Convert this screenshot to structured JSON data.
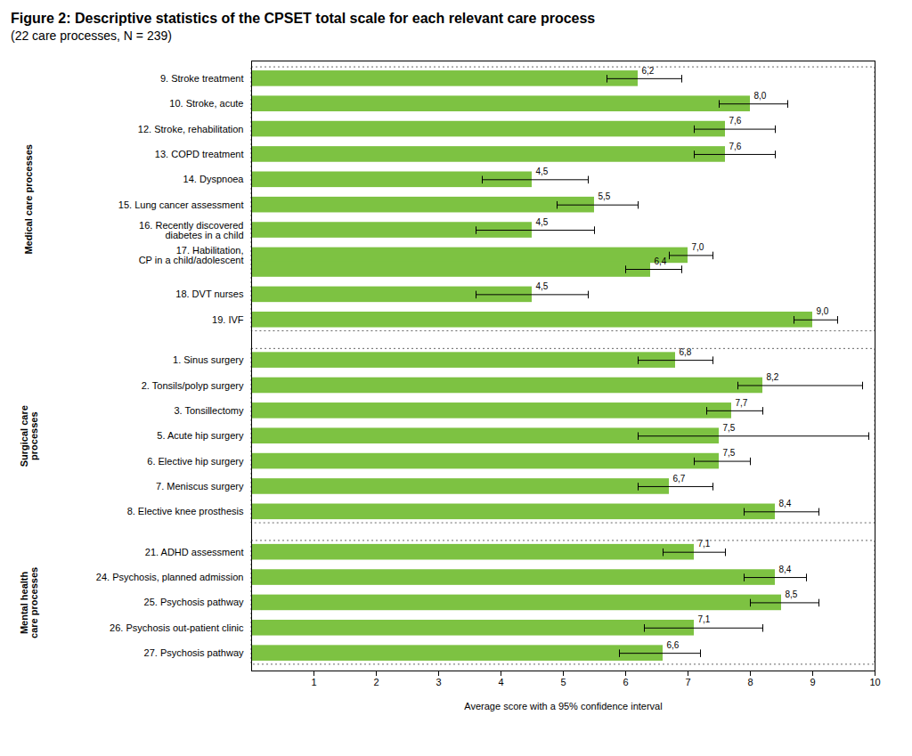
{
  "chart_data": {
    "type": "bar",
    "orientation": "horizontal",
    "title": "Figure 2: Descriptive statistics of the CPSET total scale for each relevant care process",
    "subtitle": "(22 care processes, N = 239)",
    "xlabel": "Average score with a 95% confidence interval",
    "categories": [
      "9. Stroke treatment",
      "10. Stroke, acute",
      "12. Stroke, rehabilitation",
      "13. COPD treatment",
      "14. Dyspnoea",
      "15. Lung cancer assessment",
      "16. Recently discovered\ndiabetes in a child",
      "17. Habilitation,\nCP in a child/adolescent",
      null,
      "18. DVT nurses",
      "19. IVF",
      "1. Sinus surgery",
      "2. Tonsils/polyp surgery",
      "3. Tonsillectomy",
      "5. Acute hip surgery",
      "6. Elective hip surgery",
      "7. Meniscus surgery",
      "8. Elective knee prosthesis",
      "21. ADHD assessment",
      "24. Psychosis, planned admission",
      "25. Psychosis pathway",
      "26. Psychosis out-patient clinic",
      "27. Psychosis pathway"
    ],
    "values": [
      6.2,
      8.0,
      7.6,
      7.6,
      4.5,
      5.5,
      4.5,
      7.0,
      6.4,
      4.5,
      9.0,
      6.8,
      8.2,
      7.7,
      7.5,
      7.5,
      6.7,
      8.4,
      7.1,
      8.4,
      8.5,
      7.1,
      6.6
    ],
    "value_labels": [
      "6,2",
      "8,0",
      "7,6",
      "7,6",
      "4,5",
      "5,5",
      "4,5",
      "7,0",
      "6,4",
      "4,5",
      "9,0",
      "6,8",
      "8,2",
      "7,7",
      "7,5",
      "7,5",
      "6,7",
      "8,4",
      "7,1",
      "8,4",
      "8,5",
      "7,1",
      "6,6"
    ],
    "ci_low": [
      5.7,
      7.5,
      7.1,
      7.1,
      3.7,
      4.9,
      3.6,
      6.7,
      6.0,
      3.6,
      8.7,
      6.2,
      7.8,
      7.3,
      6.2,
      7.1,
      6.2,
      7.9,
      6.6,
      7.9,
      8.0,
      6.3,
      5.9
    ],
    "ci_high": [
      6.9,
      8.6,
      8.4,
      8.4,
      5.4,
      6.2,
      5.5,
      7.4,
      6.9,
      5.4,
      9.4,
      7.4,
      9.8,
      8.2,
      9.9,
      8.0,
      7.4,
      9.1,
      7.6,
      8.9,
      9.1,
      8.2,
      7.2
    ],
    "group": [
      "Medical care processes",
      "Medical care processes",
      "Medical care processes",
      "Medical care processes",
      "Medical care processes",
      "Medical care processes",
      "Medical care processes",
      "Medical care processes",
      "Medical care processes",
      "Medical care processes",
      "Medical care processes",
      "Surgical care\nprocesses",
      "Surgical care\nprocesses",
      "Surgical care\nprocesses",
      "Surgical care\nprocesses",
      "Surgical care\nprocesses",
      "Surgical care\nprocesses",
      "Surgical care\nprocesses",
      "Mental health\ncare processes",
      "Mental health\ncare processes",
      "Mental health\ncare processes",
      "Mental health\ncare processes",
      "Mental health\ncare processes"
    ],
    "color": "#7DC242",
    "xlim": [
      0,
      10
    ],
    "xticks": [
      1,
      2,
      3,
      4,
      5,
      6,
      7,
      8,
      9,
      10
    ],
    "data_labels": true,
    "grid": false
  }
}
